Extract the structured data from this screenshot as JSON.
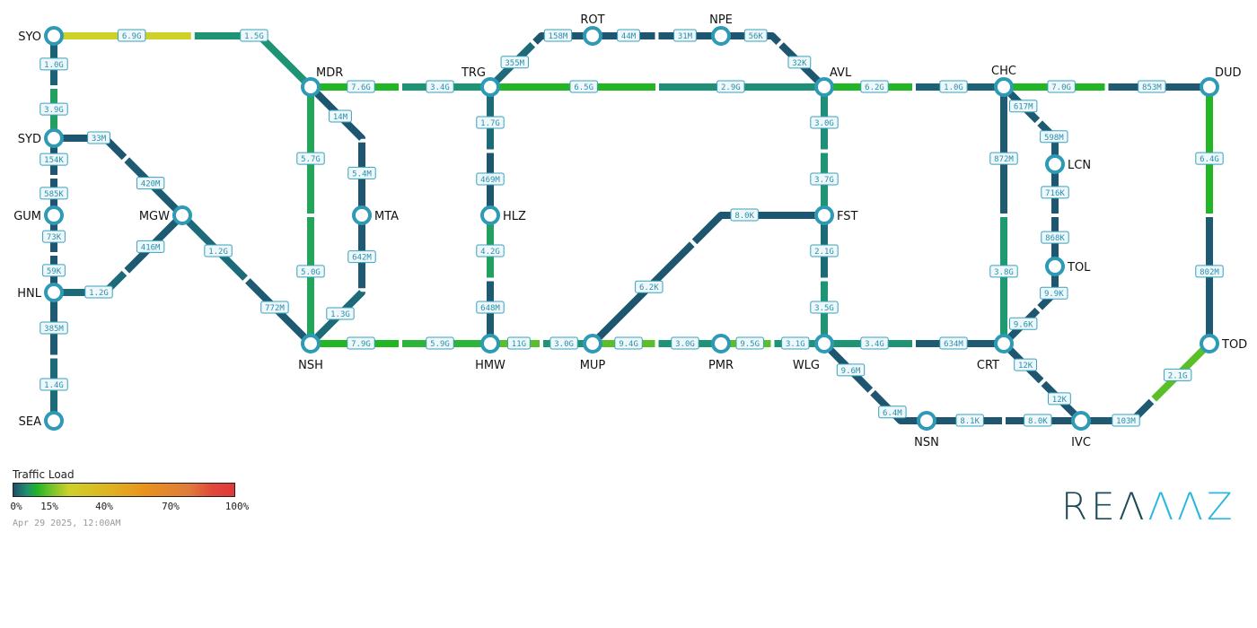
{
  "nodes": [
    "SYO",
    "SYD",
    "GUM",
    "HNL",
    "SEA",
    "MGW",
    "MDR",
    "NSH",
    "MTA",
    "TRG",
    "HLZ",
    "HMW",
    "ROT",
    "NPE",
    "AVL",
    "FST",
    "WLG",
    "MUP",
    "PMR",
    "CHC",
    "DUD",
    "LCN",
    "TOL",
    "CRT",
    "TOD",
    "NSN",
    "IVC"
  ],
  "links": [
    {
      "from": "SYO",
      "to": "MDR",
      "a": "6.9G",
      "ac": "#cdd12a",
      "b": "1.5G",
      "bc": "#1f9474"
    },
    {
      "from": "SYO",
      "to": "SYD",
      "a": "1.0G",
      "ac": "#1d6176",
      "b": "3.9G",
      "bc": "#23a060"
    },
    {
      "from": "SYD",
      "to": "GUM",
      "a": "154K",
      "ac": "#1e5670",
      "b": "585K",
      "bc": "#1e5670"
    },
    {
      "from": "GUM",
      "to": "HNL",
      "a": "73K",
      "ac": "#1e5670",
      "b": "59K",
      "bc": "#1e5670"
    },
    {
      "from": "HNL",
      "to": "SEA",
      "a": "385M",
      "ac": "#1e5a72",
      "b": "1.4G",
      "bc": "#1d6b78"
    },
    {
      "from": "SYD",
      "to": "MGW",
      "a": "33M",
      "ac": "#1e5670",
      "b": "420M",
      "bc": "#1e5a72"
    },
    {
      "from": "HNL",
      "to": "MGW",
      "a": "1.2G",
      "ac": "#1d6b78",
      "b": "416M",
      "bc": "#1e5a72"
    },
    {
      "from": "MGW",
      "to": "NSH",
      "a": "1.2G",
      "ac": "#1d6b78",
      "b": "772M",
      "bc": "#1e5a72"
    },
    {
      "from": "MDR",
      "to": "NSH",
      "a": "5.7G",
      "ac": "#25a55a",
      "b": "5.0G",
      "bc": "#25a55a"
    },
    {
      "from": "MDR",
      "to": "MTA",
      "a": "14M",
      "ac": "#1e5670",
      "b": "5.4M",
      "bc": "#1e5670"
    },
    {
      "from": "MTA",
      "to": "NSH",
      "a": "642M",
      "ac": "#1e5a72",
      "b": "1.3G",
      "bc": "#1d6b78"
    },
    {
      "from": "MDR",
      "to": "TRG",
      "a": "7.6G",
      "ac": "#22b524",
      "b": "3.4G",
      "bc": "#1f9474"
    },
    {
      "from": "NSH",
      "to": "HMW",
      "a": "7.9G",
      "ac": "#22b524",
      "b": "5.9G",
      "bc": "#2db53a"
    },
    {
      "from": "TRG",
      "to": "HLZ",
      "a": "1.7G",
      "ac": "#1d6b78",
      "b": "469M",
      "bc": "#1e5670"
    },
    {
      "from": "HLZ",
      "to": "HMW",
      "a": "4.2G",
      "ac": "#22a060",
      "b": "648M",
      "bc": "#1e5a72"
    },
    {
      "from": "TRG",
      "to": "AVL",
      "a": "6.5G",
      "ac": "#22b524",
      "b": "2.9G",
      "bc": "#1f8f78"
    },
    {
      "from": "TRG",
      "to": "ROT",
      "a": "355M",
      "ac": "#1d6b78",
      "b": "158M",
      "bc": "#1e5670"
    },
    {
      "from": "ROT",
      "to": "NPE",
      "a": "44M",
      "ac": "#1e5670",
      "b": "31M",
      "bc": "#1e5670"
    },
    {
      "from": "NPE",
      "to": "AVL",
      "a": "56K",
      "ac": "#1e5670",
      "b": "32K",
      "bc": "#1e5670"
    },
    {
      "from": "HMW",
      "to": "MUP",
      "a": "11G",
      "ac": "#5bbf2a",
      "b": "3.0G",
      "bc": "#1f9474"
    },
    {
      "from": "MUP",
      "to": "PMR",
      "a": "9.4G",
      "ac": "#5bbf2a",
      "b": "3.0G",
      "bc": "#1f9474"
    },
    {
      "from": "PMR",
      "to": "WLG",
      "a": "9.5G",
      "ac": "#5bbf2a",
      "b": "3.1G",
      "bc": "#1f9474"
    },
    {
      "from": "MUP",
      "to": "FST",
      "a": "6.2K",
      "ac": "#1e5670",
      "b": "8.0K",
      "bc": "#1e5670"
    },
    {
      "from": "AVL",
      "to": "FST",
      "a": "3.0G",
      "ac": "#1f8f78",
      "b": "3.7G",
      "bc": "#1f9474"
    },
    {
      "from": "FST",
      "to": "WLG",
      "a": "2.1G",
      "ac": "#1d6b78",
      "b": "3.5G",
      "bc": "#1f9474"
    },
    {
      "from": "AVL",
      "to": "CHC",
      "a": "6.2G",
      "ac": "#22b524",
      "b": "1.0G",
      "bc": "#1d6176"
    },
    {
      "from": "CHC",
      "to": "DUD",
      "a": "7.0G",
      "ac": "#22b524",
      "b": "853M",
      "bc": "#1e5a72"
    },
    {
      "from": "WLG",
      "to": "CRT",
      "a": "3.4G",
      "ac": "#1f9474",
      "b": "634M",
      "bc": "#1e5a72"
    },
    {
      "from": "CHC",
      "to": "CRT",
      "a": "872M",
      "ac": "#1e5a72",
      "b": "3.8G",
      "bc": "#1f9a70"
    },
    {
      "from": "CHC",
      "to": "LCN",
      "a": "617M",
      "ac": "#1e5a72",
      "b": "598M",
      "bc": "#1e5a72"
    },
    {
      "from": "LCN",
      "to": "TOL",
      "a": "716K",
      "ac": "#1e5670",
      "b": "868K",
      "bc": "#1e5670"
    },
    {
      "from": "TOL",
      "to": "CRT",
      "a": "9.9K",
      "ac": "#1e5670",
      "b": "9.6K",
      "bc": "#1e5670"
    },
    {
      "from": "DUD",
      "to": "TOD",
      "a": "6.4G",
      "ac": "#22b524",
      "b": "802M",
      "bc": "#1e5a72"
    },
    {
      "from": "WLG",
      "to": "NSN",
      "a": "9.6M",
      "ac": "#1e5670",
      "b": "6.4M",
      "bc": "#1e5670"
    },
    {
      "from": "NSN",
      "to": "IVC",
      "a": "8.1K",
      "ac": "#1e5670",
      "b": "8.0K",
      "bc": "#1e5670"
    },
    {
      "from": "CRT",
      "to": "IVC",
      "a": "12K",
      "ac": "#1e5670",
      "b": "12K",
      "bc": "#1e5670"
    },
    {
      "from": "IVC",
      "to": "TOD",
      "a": "103M",
      "ac": "#1e5a72",
      "b": "2.1G",
      "bc": "#5bbf2a"
    }
  ],
  "node_color": "#2e9ab5",
  "legend": {
    "title": "Traffic Load",
    "ticks": [
      "0%",
      "15%",
      "40%",
      "70%",
      "100%"
    ],
    "timestamp": "Apr 29 2025, 12:00AM"
  },
  "logo": {
    "part1": "REΛ",
    "part2": "ΛΛZ",
    "text": "REANNZ"
  }
}
